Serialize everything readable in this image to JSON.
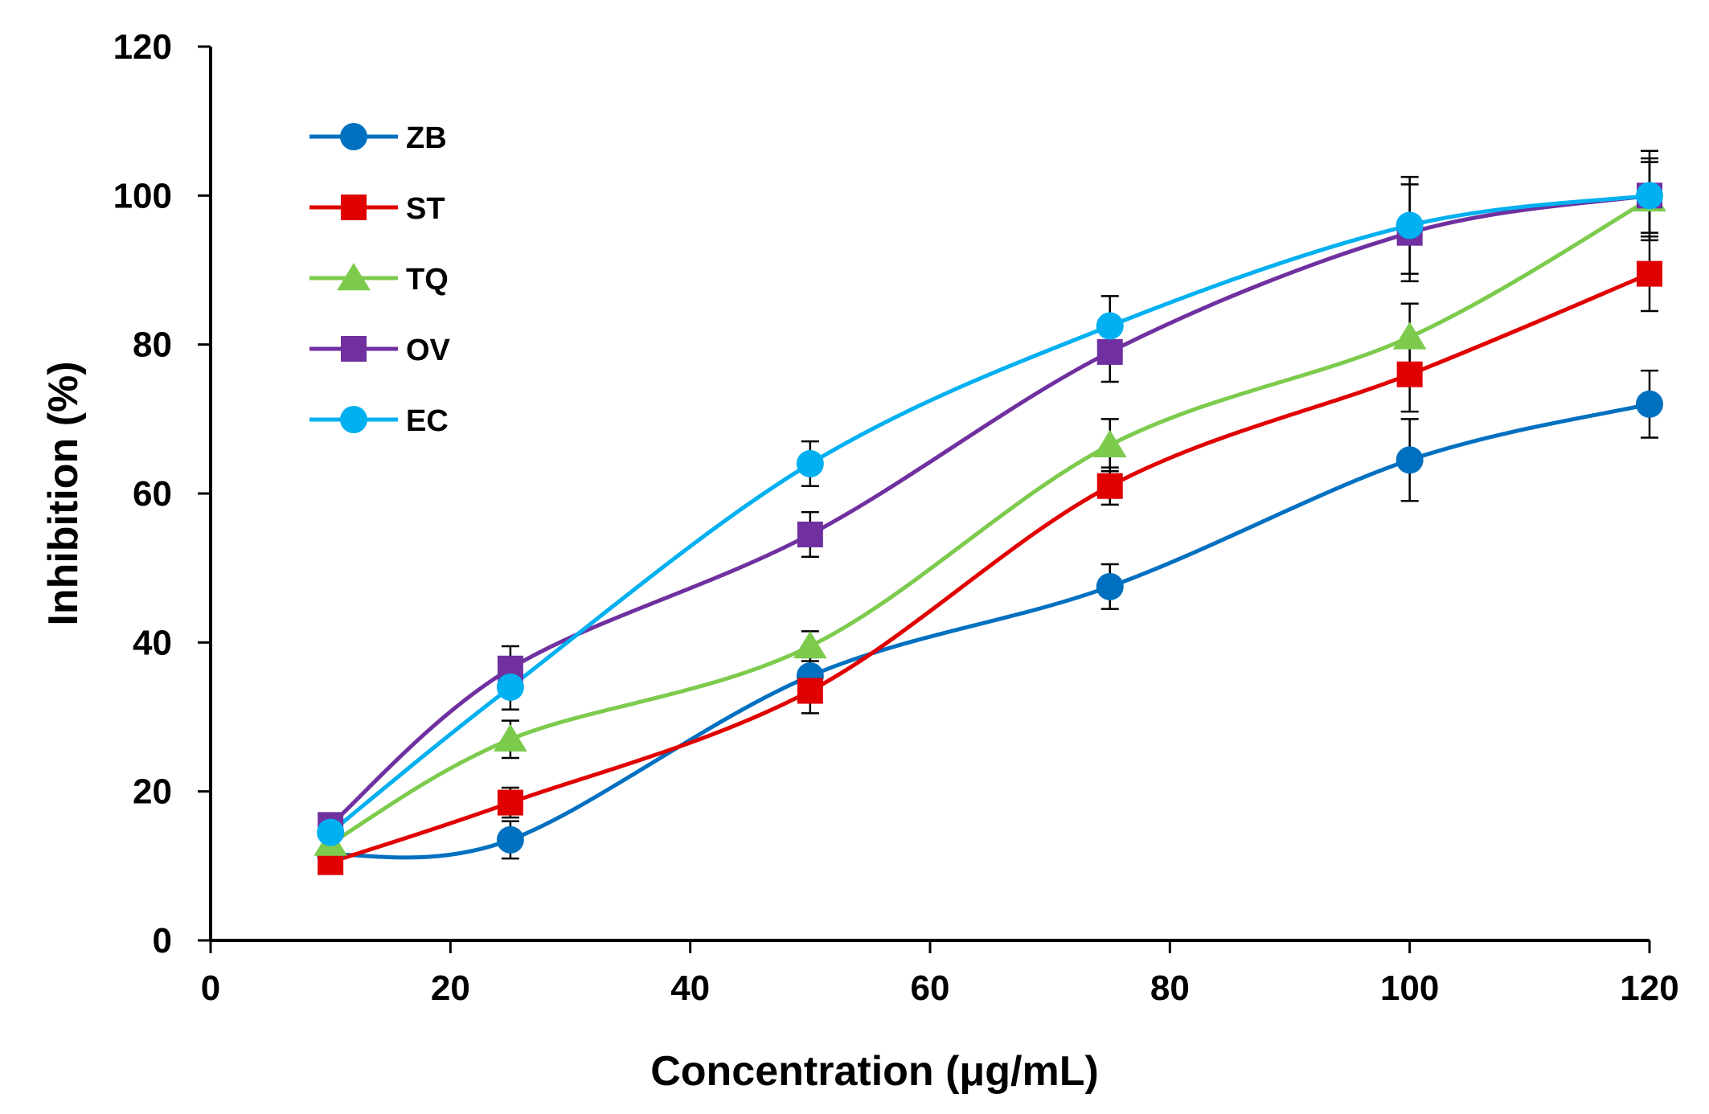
{
  "chart_data": {
    "type": "line",
    "title": "",
    "xlabel": "Concentration (μg/mL)",
    "ylabel": "Inhibition (%)",
    "xlim": [
      0,
      120
    ],
    "ylim": [
      0,
      120
    ],
    "xticks": [
      0,
      20,
      40,
      60,
      80,
      100,
      120
    ],
    "yticks": [
      0,
      20,
      40,
      60,
      80,
      100,
      120
    ],
    "x": [
      10,
      25,
      50,
      75,
      100,
      120
    ],
    "legend_position": "top-left",
    "series": [
      {
        "name": "ZB",
        "color": "#0070C0",
        "marker": "circle",
        "values": [
          11.5,
          13.5,
          35.5,
          47.5,
          64.5,
          72
        ],
        "errors": [
          1.5,
          2.5,
          2.5,
          3,
          5.5,
          4.5
        ]
      },
      {
        "name": "ST",
        "color": "#E00000",
        "marker": "square",
        "values": [
          10.5,
          18.5,
          33.5,
          61,
          76,
          89.5
        ],
        "errors": [
          1.5,
          2,
          3,
          2.5,
          5,
          5
        ]
      },
      {
        "name": "TQ",
        "color": "#7DCB4D",
        "marker": "triangle",
        "values": [
          13,
          27,
          39.5,
          66.5,
          81,
          99.5
        ],
        "errors": [
          1.5,
          2.5,
          2,
          3.5,
          4.5,
          5
        ]
      },
      {
        "name": "OV",
        "color": "#7030A0",
        "marker": "square",
        "values": [
          15.5,
          36.5,
          54.5,
          79,
          95,
          100
        ],
        "errors": [
          1.5,
          3,
          3,
          4,
          6.5,
          5
        ]
      },
      {
        "name": "EC",
        "color": "#00B0F0",
        "marker": "circle",
        "values": [
          14.5,
          34,
          64,
          82.5,
          96,
          100
        ],
        "errors": [
          1.5,
          3,
          3,
          4,
          6.5,
          6
        ]
      }
    ]
  }
}
